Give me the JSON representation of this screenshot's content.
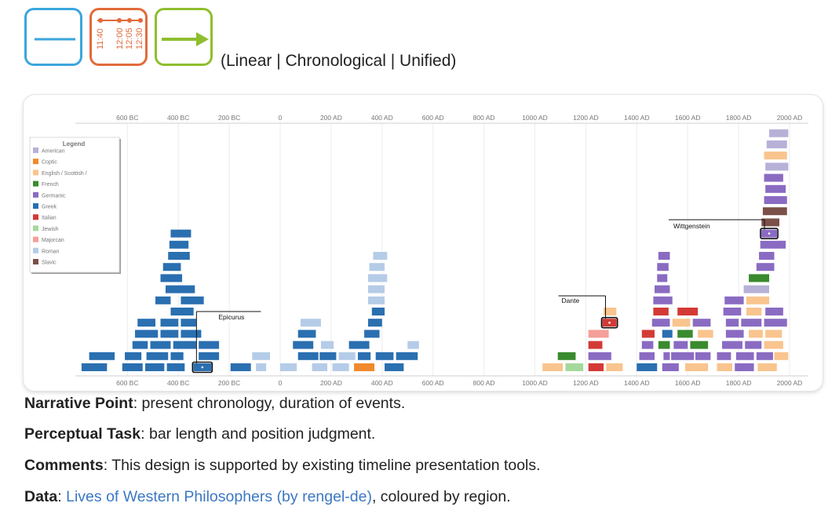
{
  "header": {
    "icons": [
      {
        "name": "linear-line-icon",
        "color": "#3aa6dd"
      },
      {
        "name": "chronological-times-icon",
        "color": "#e26a3a",
        "labels": [
          "11:40",
          "12:00",
          "12:05",
          "12:30"
        ]
      },
      {
        "name": "unified-arrow-icon",
        "color": "#8fbe2e"
      }
    ],
    "scheme_label": "(Linear | Chronological | Unified)"
  },
  "chart_data": {
    "type": "timeline",
    "x_ticks": [
      "600 BC",
      "400 BC",
      "200 BC",
      "0",
      "200 AD",
      "400 AD",
      "600 AD",
      "800 AD",
      "1000 AD",
      "1200 AD",
      "1400 AD",
      "1600 AD",
      "1800 AD",
      "2000 AD"
    ],
    "x_tick_values": [
      -600,
      -400,
      -200,
      0,
      200,
      400,
      600,
      800,
      1000,
      1200,
      1400,
      1600,
      1800,
      2000
    ],
    "xlim": [
      -800,
      2030
    ],
    "grid": true,
    "legend": {
      "title": "Legend",
      "placement": "top-left",
      "items": [
        {
          "label": "American",
          "color": "#b7b1d8"
        },
        {
          "label": "Coptic",
          "color": "#f08a2c"
        },
        {
          "label": "English / Scottish /",
          "color": "#f9c48e"
        },
        {
          "label": "French",
          "color": "#3a8a2e"
        },
        {
          "label": "Germanic",
          "color": "#8a6bc2"
        },
        {
          "label": "Greek",
          "color": "#2a6fb0"
        },
        {
          "label": "Italian",
          "color": "#d33a36"
        },
        {
          "label": "Jewish",
          "color": "#a5d99c"
        },
        {
          "label": "Majorcan",
          "color": "#f59f99"
        },
        {
          "label": "Roman",
          "color": "#b5cce8"
        },
        {
          "label": "Slavic",
          "color": "#7b5048"
        }
      ]
    },
    "annotations": [
      {
        "label": "Epicurus",
        "start": -341,
        "end": -270,
        "region": "Greek"
      },
      {
        "label": "Dante",
        "start": 1265,
        "end": 1321,
        "region": "Italian"
      },
      {
        "label": "Wittgenstein",
        "start": 1889,
        "end": 1951,
        "region": "Germanic"
      }
    ],
    "lives": [
      {
        "s": -780,
        "e": -680,
        "r": "Greek",
        "row": 0
      },
      {
        "s": -620,
        "e": -540,
        "r": "Greek",
        "row": 0
      },
      {
        "s": -530,
        "e": -455,
        "r": "Greek",
        "row": 0
      },
      {
        "s": -445,
        "e": -375,
        "r": "Greek",
        "row": 0
      },
      {
        "s": -341,
        "e": -270,
        "r": "Greek",
        "row": 0,
        "label": "Epicurus"
      },
      {
        "s": -195,
        "e": -115,
        "r": "Greek",
        "row": 0
      },
      {
        "s": -95,
        "e": -55,
        "r": "Roman",
        "row": 0
      },
      {
        "s": 0,
        "e": 65,
        "r": "Roman",
        "row": 0
      },
      {
        "s": 125,
        "e": 185,
        "r": "Roman",
        "row": 0
      },
      {
        "s": 205,
        "e": 270,
        "r": "Roman",
        "row": 0
      },
      {
        "s": 290,
        "e": 370,
        "r": "Coptic",
        "row": 0
      },
      {
        "s": 410,
        "e": 485,
        "r": "Greek",
        "row": 0
      },
      {
        "s": 1030,
        "e": 1110,
        "r": "English / Scottish /",
        "row": 0
      },
      {
        "s": 1120,
        "e": 1190,
        "r": "Jewish",
        "row": 0
      },
      {
        "s": 1210,
        "e": 1270,
        "r": "Italian",
        "row": 0
      },
      {
        "s": 1280,
        "e": 1345,
        "r": "English / Scottish /",
        "row": 0
      },
      {
        "s": 1400,
        "e": 1480,
        "r": "Greek",
        "row": 0
      },
      {
        "s": 1500,
        "e": 1565,
        "r": "Germanic",
        "row": 0
      },
      {
        "s": 1590,
        "e": 1680,
        "r": "English / Scottish /",
        "row": 0
      },
      {
        "s": 1715,
        "e": 1775,
        "r": "English / Scottish /",
        "row": 0
      },
      {
        "s": 1785,
        "e": 1860,
        "r": "Germanic",
        "row": 0
      },
      {
        "s": 1875,
        "e": 1950,
        "r": "English / Scottish /",
        "row": 0
      },
      {
        "s": -750,
        "e": -650,
        "r": "Greek",
        "row": 1
      },
      {
        "s": -610,
        "e": -545,
        "r": "Greek",
        "row": 1
      },
      {
        "s": -525,
        "e": -440,
        "r": "Greek",
        "row": 1
      },
      {
        "s": -430,
        "e": -380,
        "r": "Greek",
        "row": 1
      },
      {
        "s": -320,
        "e": -240,
        "r": "Greek",
        "row": 1
      },
      {
        "s": -110,
        "e": -40,
        "r": "Roman",
        "row": 1
      },
      {
        "s": 70,
        "e": 150,
        "r": "Greek",
        "row": 1
      },
      {
        "s": 155,
        "e": 220,
        "r": "Greek",
        "row": 1
      },
      {
        "s": 230,
        "e": 295,
        "r": "Roman",
        "row": 1
      },
      {
        "s": 305,
        "e": 355,
        "r": "Greek",
        "row": 1
      },
      {
        "s": 375,
        "e": 445,
        "r": "Greek",
        "row": 1
      },
      {
        "s": 455,
        "e": 540,
        "r": "Greek",
        "row": 1
      },
      {
        "s": 1090,
        "e": 1160,
        "r": "French",
        "row": 1
      },
      {
        "s": 1210,
        "e": 1300,
        "r": "Germanic",
        "row": 1
      },
      {
        "s": 1410,
        "e": 1470,
        "r": "Germanic",
        "row": 1
      },
      {
        "s": 1505,
        "e": 1530,
        "r": "Germanic",
        "row": 1
      },
      {
        "s": 1535,
        "e": 1625,
        "r": "Germanic",
        "row": 1
      },
      {
        "s": 1630,
        "e": 1690,
        "r": "Germanic",
        "row": 1
      },
      {
        "s": 1715,
        "e": 1770,
        "r": "Germanic",
        "row": 1
      },
      {
        "s": 1790,
        "e": 1860,
        "r": "Germanic",
        "row": 1
      },
      {
        "s": 1870,
        "e": 1935,
        "r": "Germanic",
        "row": 1
      },
      {
        "s": 1940,
        "e": 1995,
        "r": "English / Scottish /",
        "row": 1
      },
      {
        "s": -580,
        "e": -520,
        "r": "Greek",
        "row": 2
      },
      {
        "s": -510,
        "e": -430,
        "r": "Greek",
        "row": 2
      },
      {
        "s": -420,
        "e": -330,
        "r": "Greek",
        "row": 2
      },
      {
        "s": -320,
        "e": -240,
        "r": "Greek",
        "row": 2
      },
      {
        "s": 50,
        "e": 130,
        "r": "Greek",
        "row": 2
      },
      {
        "s": 160,
        "e": 210,
        "r": "Roman",
        "row": 2
      },
      {
        "s": 270,
        "e": 350,
        "r": "Greek",
        "row": 2
      },
      {
        "s": 500,
        "e": 545,
        "r": "Roman",
        "row": 2
      },
      {
        "s": 1210,
        "e": 1265,
        "r": "Italian",
        "row": 2
      },
      {
        "s": 1420,
        "e": 1465,
        "r": "Germanic",
        "row": 2
      },
      {
        "s": 1485,
        "e": 1530,
        "r": "French",
        "row": 2
      },
      {
        "s": 1545,
        "e": 1600,
        "r": "Germanic",
        "row": 2
      },
      {
        "s": 1610,
        "e": 1680,
        "r": "French",
        "row": 2
      },
      {
        "s": 1735,
        "e": 1815,
        "r": "Germanic",
        "row": 2
      },
      {
        "s": 1825,
        "e": 1890,
        "r": "Germanic",
        "row": 2
      },
      {
        "s": 1900,
        "e": 1975,
        "r": "English / Scottish /",
        "row": 2
      },
      {
        "s": -570,
        "e": -480,
        "r": "Greek",
        "row": 3
      },
      {
        "s": -470,
        "e": -400,
        "r": "Greek",
        "row": 3
      },
      {
        "s": -390,
        "e": -310,
        "r": "Greek",
        "row": 3
      },
      {
        "s": 70,
        "e": 140,
        "r": "Greek",
        "row": 3
      },
      {
        "s": 330,
        "e": 390,
        "r": "Greek",
        "row": 3
      },
      {
        "s": 1210,
        "e": 1290,
        "r": "Majorcan",
        "row": 3
      },
      {
        "s": 1420,
        "e": 1470,
        "r": "Italian",
        "row": 3
      },
      {
        "s": 1500,
        "e": 1540,
        "r": "Greek",
        "row": 3
      },
      {
        "s": 1560,
        "e": 1620,
        "r": "French",
        "row": 3
      },
      {
        "s": 1640,
        "e": 1700,
        "r": "English / Scottish /",
        "row": 3
      },
      {
        "s": 1750,
        "e": 1820,
        "r": "Germanic",
        "row": 3
      },
      {
        "s": 1840,
        "e": 1895,
        "r": "English / Scottish /",
        "row": 3
      },
      {
        "s": 1905,
        "e": 1970,
        "r": "English / Scottish /",
        "row": 3
      },
      {
        "s": -560,
        "e": -490,
        "r": "Greek",
        "row": 4
      },
      {
        "s": -470,
        "e": -400,
        "r": "Greek",
        "row": 4
      },
      {
        "s": -390,
        "e": -330,
        "r": "Greek",
        "row": 4
      },
      {
        "s": 80,
        "e": 160,
        "r": "Roman",
        "row": 4
      },
      {
        "s": 345,
        "e": 400,
        "r": "Greek",
        "row": 4
      },
      {
        "s": 1265,
        "e": 1321,
        "r": "Italian",
        "row": 4,
        "label": "Dante"
      },
      {
        "s": 1460,
        "e": 1530,
        "r": "Germanic",
        "row": 4
      },
      {
        "s": 1540,
        "e": 1610,
        "r": "English / Scottish /",
        "row": 4
      },
      {
        "s": 1620,
        "e": 1690,
        "r": "Germanic",
        "row": 4
      },
      {
        "s": 1750,
        "e": 1800,
        "r": "Germanic",
        "row": 4
      },
      {
        "s": 1810,
        "e": 1890,
        "r": "Germanic",
        "row": 4
      },
      {
        "s": 1900,
        "e": 1990,
        "r": "Germanic",
        "row": 4
      },
      {
        "s": -430,
        "e": -340,
        "r": "Greek",
        "row": 5
      },
      {
        "s": 360,
        "e": 410,
        "r": "Greek",
        "row": 5
      },
      {
        "s": 1270,
        "e": 1320,
        "r": "English / Scottish /",
        "row": 5
      },
      {
        "s": 1465,
        "e": 1525,
        "r": "Italian",
        "row": 5
      },
      {
        "s": 1560,
        "e": 1640,
        "r": "Italian",
        "row": 5
      },
      {
        "s": 1740,
        "e": 1810,
        "r": "Germanic",
        "row": 5
      },
      {
        "s": 1830,
        "e": 1890,
        "r": "English / Scottish /",
        "row": 5
      },
      {
        "s": 1905,
        "e": 1975,
        "r": "Germanic",
        "row": 5
      },
      {
        "s": -490,
        "e": -430,
        "r": "Greek",
        "row": 6
      },
      {
        "s": -390,
        "e": -300,
        "r": "Greek",
        "row": 6
      },
      {
        "s": 345,
        "e": 410,
        "r": "Roman",
        "row": 6
      },
      {
        "s": 1465,
        "e": 1540,
        "r": "Germanic",
        "row": 6
      },
      {
        "s": 1745,
        "e": 1820,
        "r": "Germanic",
        "row": 6
      },
      {
        "s": 1830,
        "e": 1920,
        "r": "English / Scottish /",
        "row": 6
      },
      {
        "s": -450,
        "e": -335,
        "r": "Greek",
        "row": 7
      },
      {
        "s": 345,
        "e": 410,
        "r": "Roman",
        "row": 7
      },
      {
        "s": 1470,
        "e": 1530,
        "r": "Germanic",
        "row": 7
      },
      {
        "s": 1820,
        "e": 1920,
        "r": "American",
        "row": 7
      },
      {
        "s": -470,
        "e": -385,
        "r": "Greek",
        "row": 8
      },
      {
        "s": 345,
        "e": 420,
        "r": "Roman",
        "row": 8
      },
      {
        "s": 1480,
        "e": 1520,
        "r": "Germanic",
        "row": 8
      },
      {
        "s": 1840,
        "e": 1920,
        "r": "French",
        "row": 8
      },
      {
        "s": -460,
        "e": -390,
        "r": "Greek",
        "row": 9
      },
      {
        "s": 350,
        "e": 410,
        "r": "Roman",
        "row": 9
      },
      {
        "s": 1480,
        "e": 1525,
        "r": "Germanic",
        "row": 9
      },
      {
        "s": 1870,
        "e": 1940,
        "r": "Germanic",
        "row": 9
      },
      {
        "s": -440,
        "e": -355,
        "r": "Greek",
        "row": 10
      },
      {
        "s": 365,
        "e": 420,
        "r": "Roman",
        "row": 10
      },
      {
        "s": 1485,
        "e": 1530,
        "r": "Germanic",
        "row": 10
      },
      {
        "s": 1880,
        "e": 1940,
        "r": "Germanic",
        "row": 10
      },
      {
        "s": -435,
        "e": -360,
        "r": "Greek",
        "row": 11
      },
      {
        "s": 1885,
        "e": 1985,
        "r": "Germanic",
        "row": 11
      },
      {
        "s": -430,
        "e": -350,
        "r": "Greek",
        "row": 12
      },
      {
        "s": 1889,
        "e": 1951,
        "r": "Germanic",
        "row": 12,
        "label": "Wittgenstein"
      },
      {
        "s": 1890,
        "e": 1960,
        "r": "Slavic",
        "row": 13
      },
      {
        "s": 1895,
        "e": 1990,
        "r": "Slavic",
        "row": 14
      },
      {
        "s": 1900,
        "e": 1990,
        "r": "Germanic",
        "row": 15
      },
      {
        "s": 1905,
        "e": 1985,
        "r": "Germanic",
        "row": 16
      },
      {
        "s": 1900,
        "e": 1975,
        "r": "Germanic",
        "row": 17
      },
      {
        "s": 1905,
        "e": 1995,
        "r": "American",
        "row": 18
      },
      {
        "s": 1900,
        "e": 1990,
        "r": "English / Scottish /",
        "row": 19
      },
      {
        "s": 1910,
        "e": 1990,
        "r": "American",
        "row": 20
      },
      {
        "s": 1920,
        "e": 1995,
        "r": "American",
        "row": 21
      }
    ]
  },
  "notes": {
    "narrative_label": "Narrative Point",
    "narrative_text": ": present chronology, duration of events.",
    "perceptual_label": "Perceptual Task",
    "perceptual_text": ": bar length and position judgment.",
    "comments_label": "Comments",
    "comments_text": ": This design is supported by existing timeline presentation tools.",
    "data_label": "Data",
    "data_sep": ": ",
    "data_link": "Lives of Western Philosophers (by rengel-de)",
    "data_text": ", coloured by region."
  }
}
